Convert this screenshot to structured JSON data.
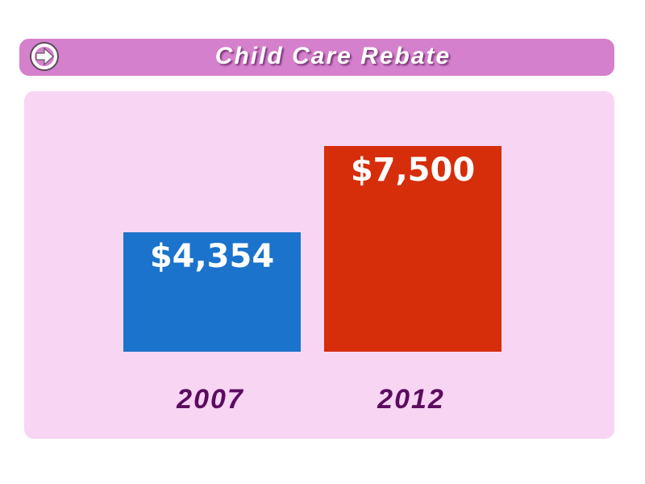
{
  "chart_data": {
    "type": "bar",
    "title": "Child Care Rebate",
    "categories": [
      "2007",
      "2012"
    ],
    "values": [
      4354,
      7500
    ],
    "value_labels": [
      "$4,354",
      "$7,500"
    ],
    "colors": [
      "#1b73cb",
      "#d62d0b"
    ]
  }
}
